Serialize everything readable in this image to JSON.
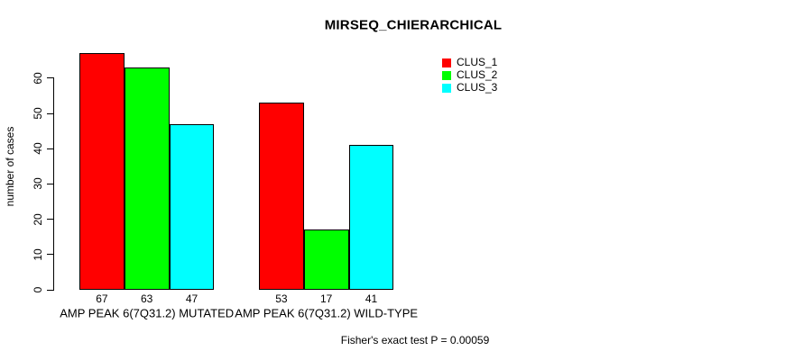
{
  "chart_data": {
    "type": "bar",
    "title": "MIRSEQ_CHIERARCHICAL",
    "ylabel": "number of cases",
    "xlabel": "",
    "categories": [
      "AMP PEAK 6(7Q31.2) MUTATED",
      "AMP PEAK 6(7Q31.2) WILD-TYPE"
    ],
    "series": [
      {
        "name": "CLUS_1",
        "color": "#ff0000",
        "values": [
          67,
          53
        ]
      },
      {
        "name": "CLUS_2",
        "color": "#00ff00",
        "values": [
          63,
          17
        ]
      },
      {
        "name": "CLUS_3",
        "color": "#00ffff",
        "values": [
          47,
          41
        ]
      }
    ],
    "bar_value_labels": [
      [
        67,
        63,
        47
      ],
      [
        53,
        17,
        41
      ]
    ],
    "yticks": [
      0,
      10,
      20,
      30,
      40,
      50,
      60
    ],
    "ylim": [
      0,
      68
    ],
    "grid": false,
    "legend_position": "top-right",
    "legend_entries": [
      "CLUS_1",
      "CLUS_2",
      "CLUS_3"
    ],
    "annotation": "Fisher's exact test P = 0.00059",
    "bar_border_color": "#000000",
    "background_color": "#ffffff",
    "text_color": "#000000"
  }
}
